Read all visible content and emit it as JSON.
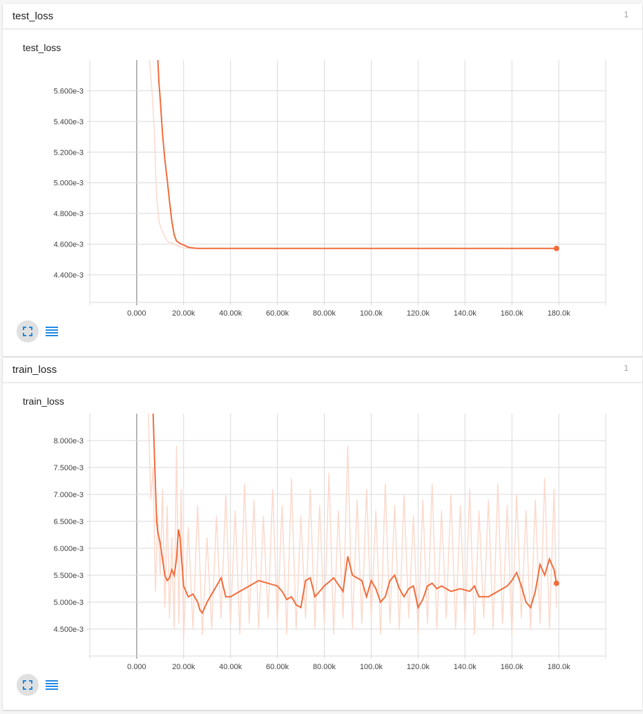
{
  "panels": [
    {
      "header_title": "test_loss",
      "header_count": "1",
      "chart_title": "test_loss",
      "icons": {
        "expand": "fullscreen-icon",
        "data": "list-icon"
      }
    },
    {
      "header_title": "train_loss",
      "header_count": "1",
      "chart_title": "train_loss",
      "icons": {
        "expand": "fullscreen-icon",
        "data": "list-icon"
      }
    }
  ],
  "colors": {
    "smoothed_line": "#f26b3a",
    "raw_line": "#fcd9cc",
    "grid": "#d9d9d9",
    "zero_line": "#9e9e9e",
    "accent_icon": "#1e88e5"
  },
  "chart_data": [
    {
      "type": "line",
      "title": "test_loss",
      "xlim": [
        -20000,
        200000
      ],
      "ylim": [
        0.00422,
        0.0058
      ],
      "x_ticks": [
        0,
        20000,
        40000,
        60000,
        80000,
        100000,
        120000,
        140000,
        160000,
        180000
      ],
      "x_tick_labels": [
        "0.000",
        "20.00k",
        "40.00k",
        "60.00k",
        "80.00k",
        "100.0k",
        "120.0k",
        "140.0k",
        "160.0k",
        "180.0k"
      ],
      "y_ticks": [
        0.0044,
        0.0046,
        0.0048,
        0.005,
        0.0052,
        0.0054,
        0.0056
      ],
      "y_tick_labels": [
        "4.400e-3",
        "4.600e-3",
        "4.800e-3",
        "5.000e-3",
        "5.200e-3",
        "5.400e-3",
        "5.600e-3"
      ],
      "grid": true,
      "series": [
        {
          "kind": "smoothed",
          "x": [
            9000,
            9500,
            10000,
            11000,
            12000,
            13000,
            14000,
            15000,
            16000,
            17000,
            18000,
            19000,
            20000,
            22000,
            24000,
            26000,
            30000,
            40000,
            60000,
            100000,
            140000,
            179000
          ],
          "y": [
            0.0058,
            0.00565,
            0.00555,
            0.00532,
            0.00515,
            0.00502,
            0.00488,
            0.00475,
            0.00466,
            0.00462,
            0.00461,
            0.0046,
            0.004595,
            0.00458,
            0.004575,
            0.004572,
            0.004572,
            0.004572,
            0.004572,
            0.004572,
            0.004572,
            0.004572
          ]
        },
        {
          "kind": "raw",
          "x": [
            5500,
            6500,
            7500,
            8000,
            8500,
            9000,
            9500,
            10000,
            11000,
            12000,
            13000,
            14000,
            15000,
            16000,
            18000,
            20000,
            24000,
            30000,
            179000
          ],
          "y": [
            0.0058,
            0.0056,
            0.00535,
            0.0051,
            0.0049,
            0.00483,
            0.00475,
            0.00472,
            0.00468,
            0.00465,
            0.00462,
            0.00461,
            0.00461,
            0.0046,
            0.004585,
            0.004575,
            0.004572,
            0.004572,
            0.004572
          ]
        }
      ]
    },
    {
      "type": "line",
      "title": "train_loss",
      "xlim": [
        -20000,
        200000
      ],
      "ylim": [
        0.004,
        0.0085
      ],
      "x_ticks": [
        0,
        20000,
        40000,
        60000,
        80000,
        100000,
        120000,
        140000,
        160000,
        180000
      ],
      "x_tick_labels": [
        "0.000",
        "20.00k",
        "40.00k",
        "60.00k",
        "80.00k",
        "100.0k",
        "120.0k",
        "140.0k",
        "160.0k",
        "180.0k"
      ],
      "y_ticks": [
        0.0045,
        0.005,
        0.0055,
        0.006,
        0.0065,
        0.007,
        0.0075,
        0.008
      ],
      "y_tick_labels": [
        "4.500e-3",
        "5.000e-3",
        "5.500e-3",
        "6.000e-3",
        "6.500e-3",
        "7.000e-3",
        "7.500e-3",
        "8.000e-3"
      ],
      "grid": true,
      "series": [
        {
          "kind": "smoothed",
          "x": [
            7000,
            7500,
            8500,
            9000,
            10000,
            11000,
            12000,
            13000,
            14000,
            15000,
            16000,
            17000,
            17800,
            18500,
            20000,
            22000,
            24000,
            26000,
            27000,
            28000,
            30000,
            32000,
            34000,
            36000,
            38000,
            40000,
            44000,
            48000,
            52000,
            56000,
            60000,
            62000,
            64000,
            66000,
            68000,
            70000,
            72000,
            74000,
            76000,
            78000,
            80000,
            84000,
            88000,
            90000,
            92000,
            94000,
            96000,
            98000,
            100000,
            102000,
            104000,
            106000,
            108000,
            110000,
            112000,
            114000,
            116000,
            118000,
            120000,
            122000,
            124000,
            126000,
            128000,
            130000,
            134000,
            138000,
            142000,
            144000,
            146000,
            150000,
            154000,
            158000,
            160000,
            162000,
            164000,
            166000,
            168000,
            170000,
            172000,
            174000,
            176000,
            178000,
            179000
          ],
          "y": [
            0.0085,
            0.0078,
            0.0065,
            0.0063,
            0.0061,
            0.0058,
            0.0055,
            0.0054,
            0.00545,
            0.0056,
            0.0055,
            0.0058,
            0.00635,
            0.0062,
            0.0053,
            0.0051,
            0.00515,
            0.005,
            0.00485,
            0.0048,
            0.005,
            0.00515,
            0.0053,
            0.00545,
            0.0051,
            0.0051,
            0.0052,
            0.0053,
            0.0054,
            0.00535,
            0.0053,
            0.0052,
            0.00505,
            0.0051,
            0.00495,
            0.0049,
            0.0054,
            0.00545,
            0.0051,
            0.0052,
            0.0053,
            0.00545,
            0.0052,
            0.00585,
            0.0055,
            0.00545,
            0.0054,
            0.0051,
            0.0054,
            0.00525,
            0.005,
            0.0051,
            0.0054,
            0.0055,
            0.00525,
            0.0051,
            0.00525,
            0.0053,
            0.0049,
            0.00505,
            0.0053,
            0.00535,
            0.00525,
            0.0053,
            0.0052,
            0.00525,
            0.0052,
            0.0053,
            0.0051,
            0.0051,
            0.0052,
            0.0053,
            0.0054,
            0.00555,
            0.0053,
            0.005,
            0.0049,
            0.0052,
            0.0057,
            0.0055,
            0.0058,
            0.0056,
            0.00535
          ]
        },
        {
          "kind": "raw",
          "x": [
            5000,
            6000,
            7000,
            8000,
            9000,
            10000,
            11000,
            12000,
            13000,
            14000,
            15000,
            16000,
            17000,
            18000,
            19000,
            20000,
            22000,
            24000,
            26000,
            28000,
            30000,
            32000,
            34000,
            36000,
            38000,
            40000,
            42000,
            44000,
            46000,
            48000,
            50000,
            52000,
            54000,
            56000,
            58000,
            60000,
            62000,
            64000,
            66000,
            68000,
            70000,
            72000,
            74000,
            76000,
            78000,
            80000,
            82000,
            84000,
            86000,
            88000,
            90000,
            92000,
            94000,
            96000,
            98000,
            100000,
            102000,
            104000,
            106000,
            108000,
            110000,
            112000,
            114000,
            116000,
            118000,
            120000,
            122000,
            124000,
            126000,
            128000,
            130000,
            132000,
            134000,
            136000,
            138000,
            140000,
            142000,
            144000,
            146000,
            148000,
            150000,
            152000,
            154000,
            156000,
            158000,
            160000,
            162000,
            164000,
            166000,
            168000,
            170000,
            172000,
            174000,
            176000,
            178000,
            179000
          ],
          "y": [
            0.0085,
            0.0069,
            0.0075,
            0.0052,
            0.0066,
            0.0055,
            0.0071,
            0.0049,
            0.0068,
            0.0047,
            0.0062,
            0.0045,
            0.0079,
            0.0046,
            0.0071,
            0.0043,
            0.0064,
            0.0045,
            0.0068,
            0.0044,
            0.0062,
            0.0045,
            0.0066,
            0.0047,
            0.007,
            0.0046,
            0.0067,
            0.0044,
            0.0072,
            0.0046,
            0.0069,
            0.0045,
            0.0066,
            0.0047,
            0.0071,
            0.0046,
            0.0068,
            0.0044,
            0.0073,
            0.0045,
            0.0066,
            0.0047,
            0.0071,
            0.0045,
            0.0068,
            0.0046,
            0.0074,
            0.0044,
            0.0067,
            0.0047,
            0.0079,
            0.0045,
            0.0069,
            0.0046,
            0.0071,
            0.0047,
            0.0067,
            0.0044,
            0.0072,
            0.0046,
            0.0068,
            0.0045,
            0.007,
            0.0047,
            0.0066,
            0.0044,
            0.0069,
            0.0046,
            0.0072,
            0.0045,
            0.0067,
            0.0047,
            0.007,
            0.0045,
            0.0068,
            0.0046,
            0.0071,
            0.0044,
            0.0067,
            0.0047,
            0.0069,
            0.0045,
            0.0072,
            0.0046,
            0.0068,
            0.0044,
            0.007,
            0.0047,
            0.0067,
            0.0045,
            0.0069,
            0.0046,
            0.0073,
            0.0045,
            0.0071,
            0.0049
          ]
        }
      ]
    }
  ]
}
